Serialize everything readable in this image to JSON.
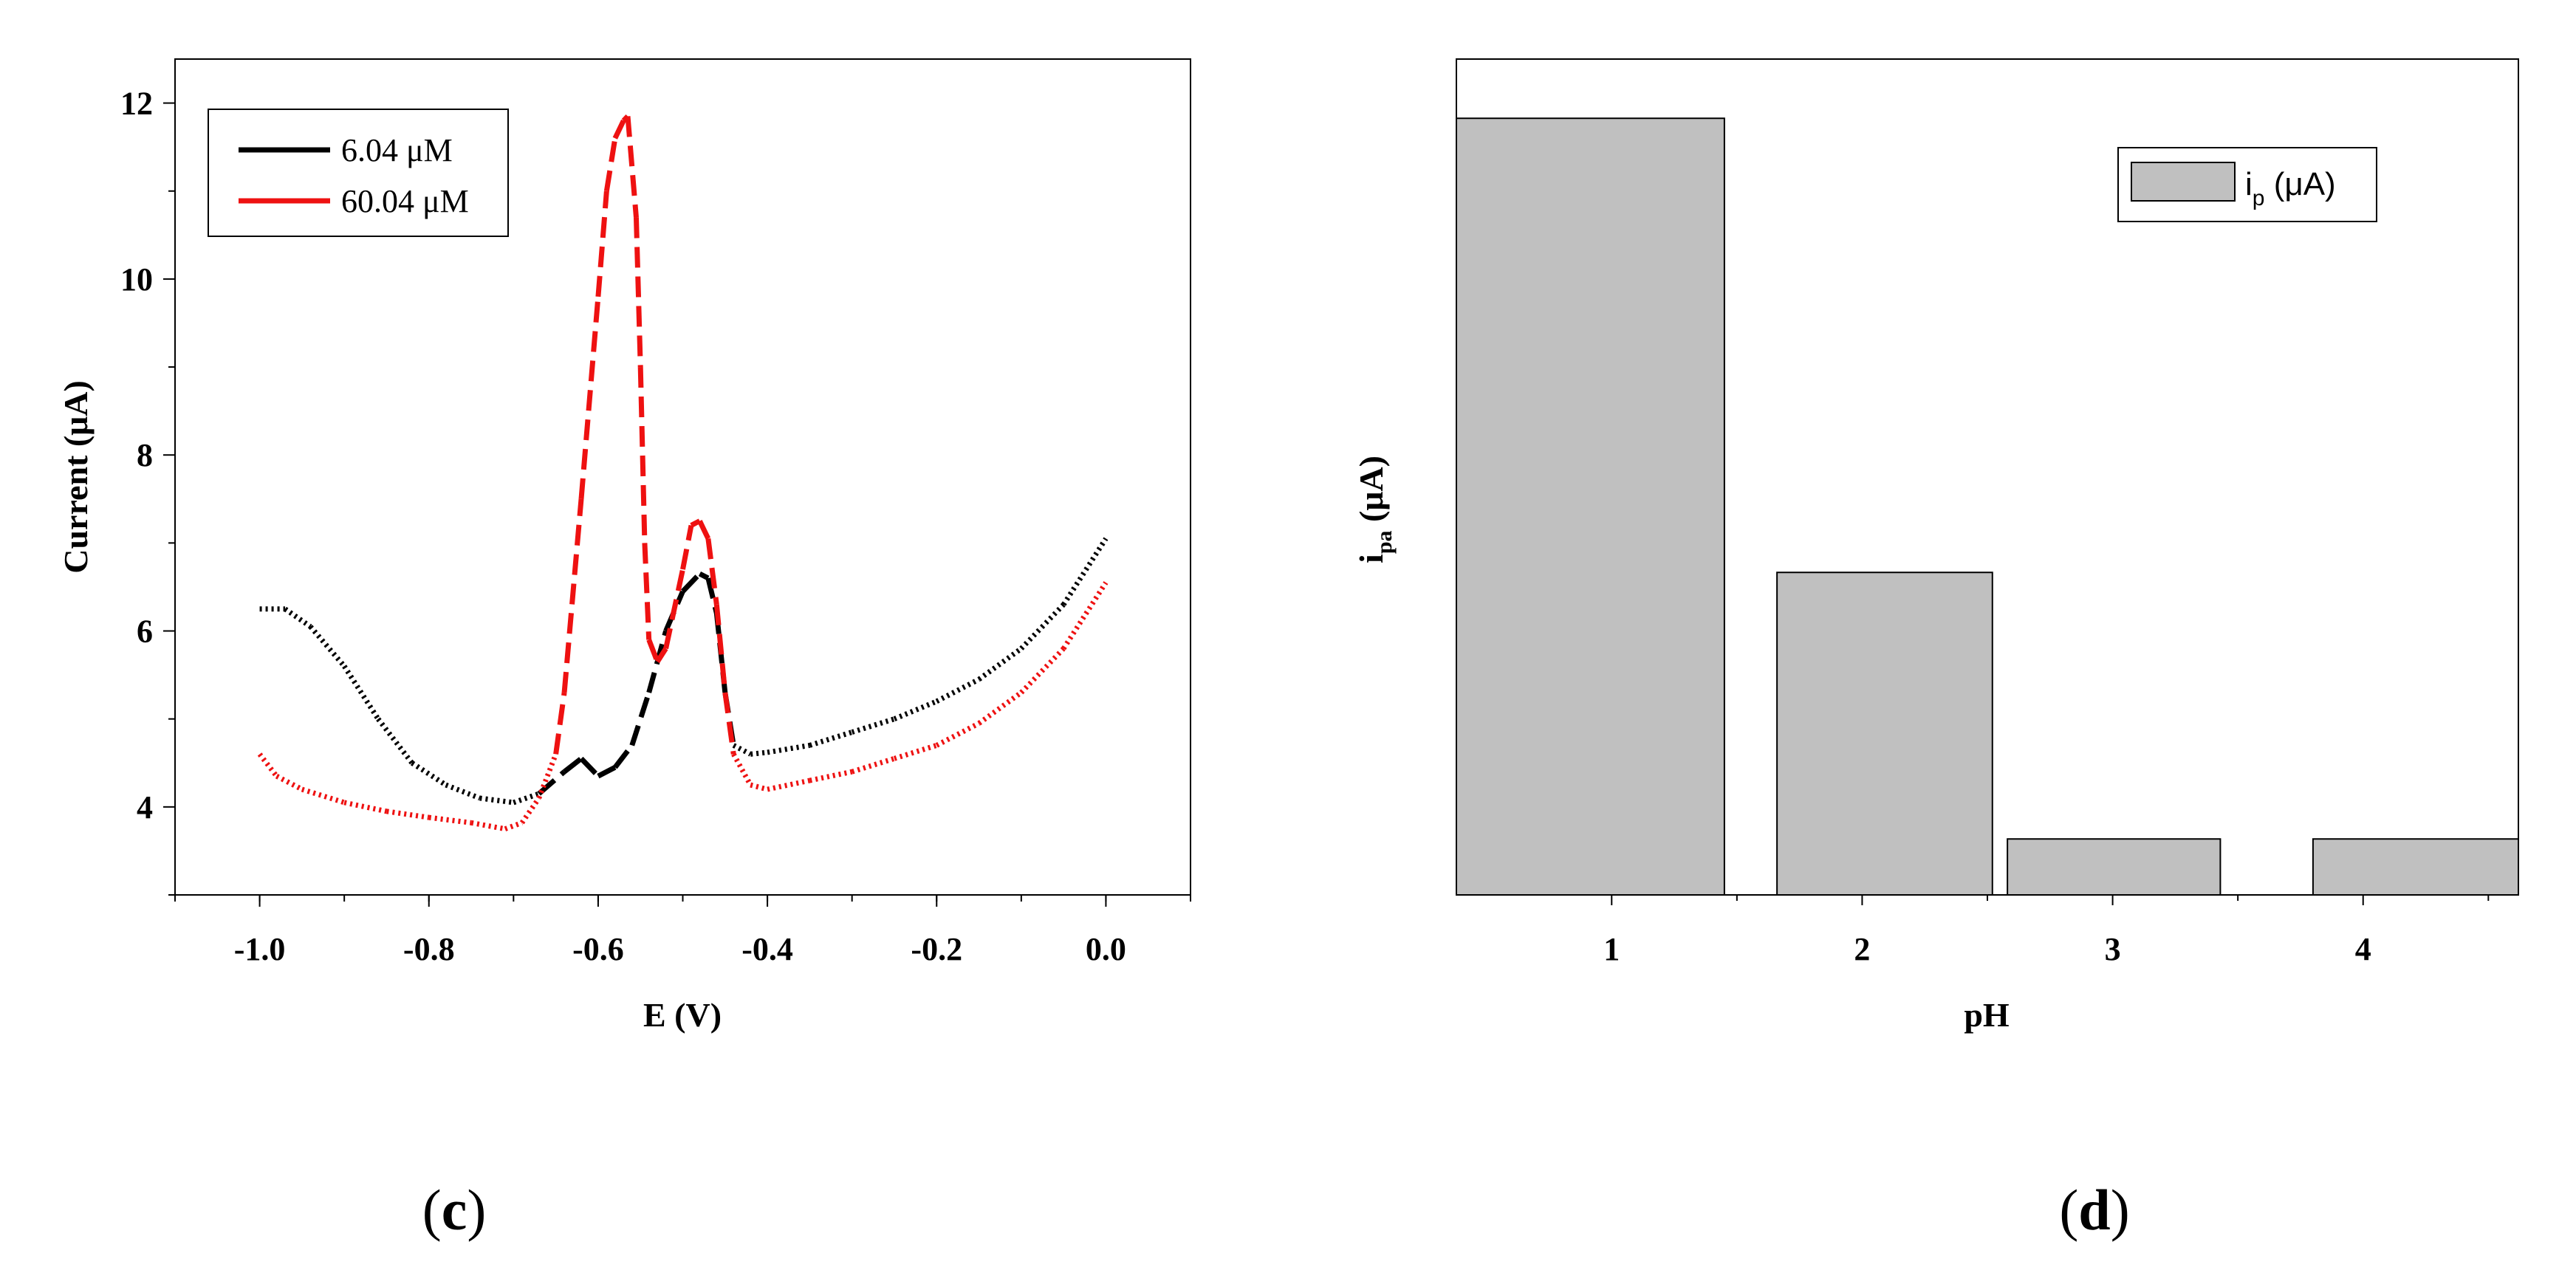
{
  "chart_data": [
    {
      "type": "line",
      "panel_label": "c",
      "xlabel": "E (V)",
      "ylabel": "Current (μA)",
      "xlim": [
        -1.1,
        0.1
      ],
      "ylim": [
        3.0,
        12.5
      ],
      "xticks": [
        -1.0,
        -0.8,
        -0.6,
        -0.4,
        -0.2,
        0.0
      ],
      "xtick_labels": [
        "-1.0",
        "-0.8",
        "-0.6",
        "-0.4",
        "-0.2",
        "0.0"
      ],
      "yticks": [
        4,
        6,
        8,
        10,
        12
      ],
      "ytick_labels": [
        "4",
        "6",
        "8",
        "10",
        "12"
      ],
      "legend_position": "top-left",
      "series": [
        {
          "name": "6.04 μM",
          "color": "#000000",
          "x": [
            -1.0,
            -0.97,
            -0.94,
            -0.9,
            -0.86,
            -0.82,
            -0.78,
            -0.74,
            -0.7,
            -0.67,
            -0.64,
            -0.62,
            -0.6,
            -0.58,
            -0.56,
            -0.54,
            -0.52,
            -0.5,
            -0.48,
            -0.47,
            -0.46,
            -0.45,
            -0.44,
            -0.42,
            -0.4,
            -0.35,
            -0.3,
            -0.25,
            -0.2,
            -0.15,
            -0.1,
            -0.05,
            0.0
          ],
          "y": [
            6.25,
            6.25,
            6.05,
            5.6,
            5.0,
            4.5,
            4.25,
            4.1,
            4.05,
            4.15,
            4.4,
            4.55,
            4.35,
            4.45,
            4.7,
            5.3,
            6.0,
            6.45,
            6.65,
            6.6,
            6.2,
            5.3,
            4.7,
            4.6,
            4.62,
            4.7,
            4.85,
            5.0,
            5.2,
            5.45,
            5.8,
            6.3,
            7.05
          ]
        },
        {
          "name": "60.04 μM",
          "color": "#ee1111",
          "x": [
            -1.0,
            -0.98,
            -0.95,
            -0.9,
            -0.85,
            -0.8,
            -0.75,
            -0.71,
            -0.69,
            -0.67,
            -0.65,
            -0.64,
            -0.62,
            -0.6,
            -0.59,
            -0.58,
            -0.57,
            -0.565,
            -0.555,
            -0.55,
            -0.545,
            -0.54,
            -0.53,
            -0.52,
            -0.5,
            -0.49,
            -0.48,
            -0.47,
            -0.46,
            -0.45,
            -0.44,
            -0.42,
            -0.4,
            -0.35,
            -0.3,
            -0.25,
            -0.2,
            -0.15,
            -0.1,
            -0.05,
            0.0
          ],
          "y": [
            4.6,
            4.35,
            4.2,
            4.05,
            3.95,
            3.88,
            3.82,
            3.75,
            3.82,
            4.1,
            4.6,
            5.3,
            7.5,
            9.8,
            11.0,
            11.6,
            11.8,
            11.85,
            10.7,
            9.0,
            7.0,
            5.9,
            5.65,
            5.8,
            6.7,
            7.2,
            7.25,
            7.05,
            6.3,
            5.3,
            4.6,
            4.25,
            4.2,
            4.3,
            4.4,
            4.55,
            4.7,
            4.95,
            5.3,
            5.8,
            6.55
          ]
        }
      ]
    },
    {
      "type": "bar",
      "panel_label": "d",
      "xlabel": "pH",
      "ylabel_main": "i",
      "ylabel_sub": "pa",
      "ylabel_unit": " (μA)",
      "legend_main": "i",
      "legend_sub": "p",
      "legend_unit": " (μA)",
      "legend_position": "top-right",
      "bar_color": "#c0c0c0",
      "categories": [
        "1",
        "2",
        "3",
        "4"
      ],
      "values": [
        11.8,
        4.9,
        0.85,
        0.85
      ],
      "ylim": [
        0,
        12.7
      ]
    }
  ]
}
